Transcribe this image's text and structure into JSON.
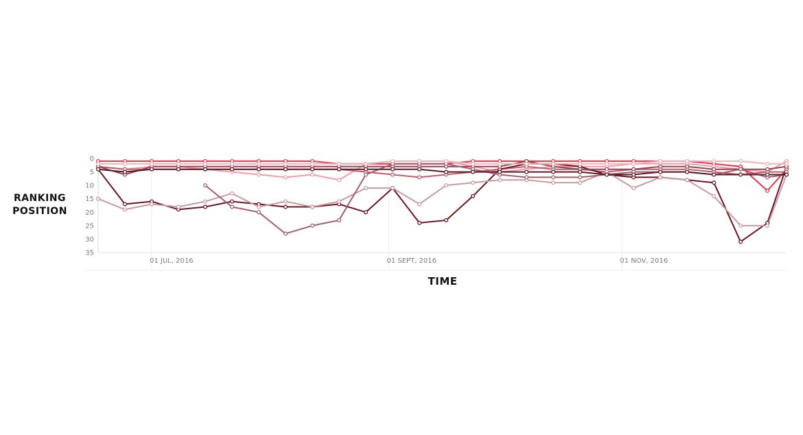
{
  "chart_data": {
    "type": "line",
    "title": "",
    "xlabel": "TIME",
    "ylabel": "RANKING POSITION",
    "y_inverted": true,
    "ylim": [
      0,
      35
    ],
    "y_ticks": [
      0,
      5,
      10,
      15,
      20,
      25,
      30,
      35
    ],
    "xlim": [
      "2016-06-17",
      "2016-12-14"
    ],
    "x_ticks": [
      {
        "date": "2016-07-01",
        "label": "01 JUL, 2016"
      },
      {
        "date": "2016-09-01",
        "label": "01 SEPT, 2016"
      },
      {
        "date": "2016-11-01",
        "label": "01 NOV, 2016"
      }
    ],
    "grid": "vertical lines at x ticks",
    "legend": "none",
    "x": [
      "2016-06-17",
      "2016-06-24",
      "2016-07-01",
      "2016-07-08",
      "2016-07-15",
      "2016-07-22",
      "2016-07-29",
      "2016-08-05",
      "2016-08-12",
      "2016-08-19",
      "2016-08-26",
      "2016-09-02",
      "2016-09-09",
      "2016-09-16",
      "2016-09-23",
      "2016-09-30",
      "2016-10-07",
      "2016-10-14",
      "2016-10-21",
      "2016-10-28",
      "2016-11-04",
      "2016-11-11",
      "2016-11-18",
      "2016-11-25",
      "2016-12-02",
      "2016-12-09",
      "2016-12-14"
    ],
    "series": [
      {
        "color": "#e8324a",
        "values": [
          1,
          1,
          1,
          1,
          1,
          1,
          1,
          1,
          1,
          2,
          2,
          2,
          2,
          2,
          1,
          1,
          1,
          1,
          1,
          1,
          1,
          1,
          1,
          2,
          3,
          12,
          4
        ]
      },
      {
        "color": "#f29aa6",
        "values": [
          3,
          4,
          3,
          3,
          4,
          5,
          6,
          7,
          6,
          8,
          2,
          1,
          1,
          1,
          3,
          5,
          4,
          3,
          3,
          3,
          2,
          2,
          2,
          3,
          4,
          5,
          1
        ]
      },
      {
        "color": "#c25a6a",
        "values": [
          3,
          4,
          4,
          4,
          4,
          4,
          4,
          4,
          4,
          4,
          5,
          6,
          7,
          6,
          5,
          4,
          3,
          4,
          4,
          5,
          4,
          4,
          4,
          5,
          6,
          5,
          5
        ]
      },
      {
        "color": "#6b1520",
        "values": [
          4,
          17,
          16,
          19,
          18,
          16,
          17,
          18,
          18,
          17,
          20,
          11,
          24,
          23,
          14,
          4,
          2,
          2,
          3,
          6,
          7,
          7,
          8,
          9,
          31,
          24,
          3
        ]
      },
      {
        "color": "#8e4452",
        "values": [
          3,
          6,
          3,
          3,
          3,
          3,
          3,
          3,
          3,
          3,
          3,
          3,
          3,
          3,
          3,
          3,
          1,
          3,
          4,
          4,
          4,
          3,
          3,
          4,
          4,
          4,
          3
        ]
      },
      {
        "color": "#c89aa2",
        "values": [
          15,
          19,
          17,
          18,
          16,
          13,
          18,
          16,
          18,
          16,
          11,
          11,
          17,
          10,
          9,
          8,
          8,
          9,
          9,
          5,
          11,
          7,
          8,
          14,
          25,
          25,
          6
        ]
      },
      {
        "color": "#a35e6a",
        "values": [
          null,
          null,
          null,
          null,
          10,
          18,
          20,
          28,
          25,
          23,
          6,
          2,
          2,
          2,
          4,
          6,
          7,
          7,
          7,
          6,
          5,
          5,
          5,
          6,
          4,
          7,
          6
        ]
      },
      {
        "color": "#e9b4bc",
        "values": [
          2,
          2,
          2,
          2,
          2,
          2,
          2,
          2,
          2,
          2,
          2,
          1,
          1,
          1,
          2,
          2,
          2,
          2,
          2,
          2,
          2,
          1,
          1,
          1,
          1,
          2,
          2
        ]
      },
      {
        "color": "#5a1c26",
        "values": [
          4,
          5,
          4,
          4,
          4,
          4,
          4,
          4,
          4,
          4,
          4,
          4,
          4,
          5,
          5,
          5,
          5,
          5,
          5,
          6,
          6,
          5,
          5,
          6,
          6,
          6,
          6
        ]
      }
    ]
  }
}
